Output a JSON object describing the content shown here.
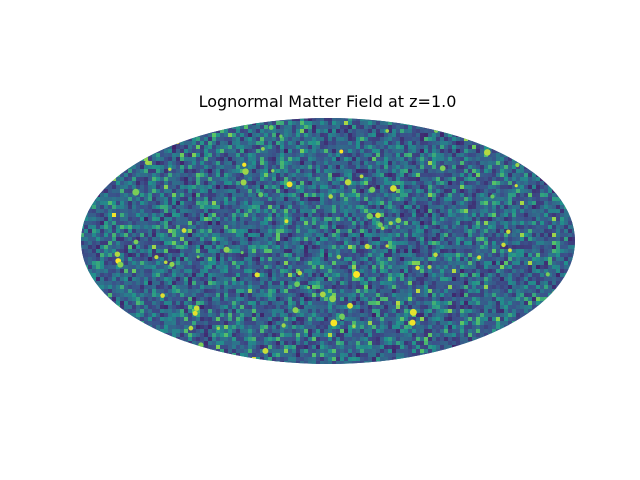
{
  "chart_data": {
    "type": "heatmap",
    "title": "Lognormal Matter Field at z=1.0",
    "projection": "mollweide",
    "colormap": "viridis",
    "colormap_stops": [
      "#440154",
      "#3b528b",
      "#21918c",
      "#5ec962",
      "#fde725"
    ],
    "field": "lognormal",
    "redshift": 1.0,
    "grid": false,
    "axes_visible": false,
    "xlabel": "",
    "ylabel": ""
  }
}
